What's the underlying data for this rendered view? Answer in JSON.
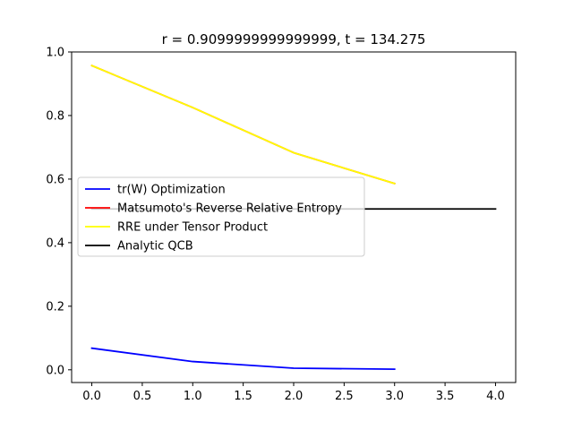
{
  "chart_data": {
    "type": "line",
    "title": "r = 0.9099999999999999, t = 134.275",
    "xlabel": "",
    "ylabel": "",
    "xlim": [
      -0.2,
      4.2
    ],
    "ylim": [
      -0.04,
      1.0
    ],
    "xticks": [
      0.0,
      0.5,
      1.0,
      1.5,
      2.0,
      2.5,
      3.0,
      3.5,
      4.0
    ],
    "xtick_labels": [
      "0.0",
      "0.5",
      "1.0",
      "1.5",
      "2.0",
      "2.5",
      "3.0",
      "3.5",
      "4.0"
    ],
    "yticks": [
      0.0,
      0.2,
      0.4,
      0.6,
      0.8,
      1.0
    ],
    "ytick_labels": [
      "0.0",
      "0.2",
      "0.4",
      "0.6",
      "0.8",
      "1.0"
    ],
    "grid": false,
    "legend_position": "center-left",
    "series": [
      {
        "name": "tr(W) Optimization",
        "color": "#0000ff",
        "x": [
          0,
          1,
          2,
          3
        ],
        "y": [
          0.068,
          0.026,
          0.005,
          0.002
        ]
      },
      {
        "name": "Matsumoto's Reverse Relative Entropy",
        "color": "#ff0000",
        "x": [
          0,
          1,
          2,
          3
        ],
        "y": [
          0.957,
          0.825,
          0.683,
          0.586
        ]
      },
      {
        "name": "RRE under Tensor Product",
        "color": "#ffff00",
        "x": [
          0,
          1,
          2,
          3
        ],
        "y": [
          0.957,
          0.825,
          0.683,
          0.586
        ]
      },
      {
        "name": "Analytic QCB",
        "color": "#000000",
        "x": [
          0,
          4
        ],
        "y": [
          0.506,
          0.506
        ]
      }
    ]
  }
}
